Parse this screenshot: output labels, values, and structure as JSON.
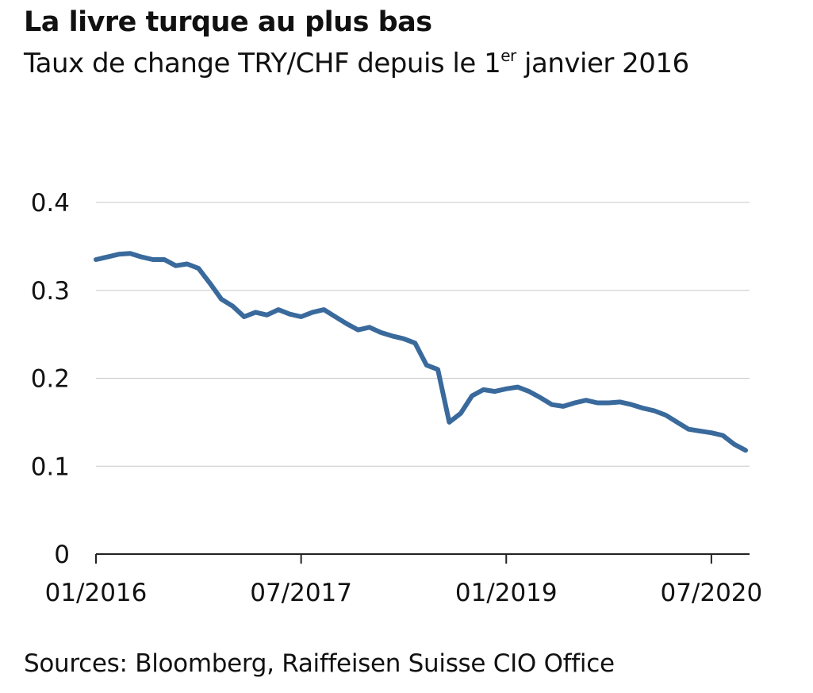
{
  "header": {
    "title": "La livre turque au plus bas",
    "subtitle_main": "Taux de change TRY/CHF depuis le 1",
    "subtitle_sup": "er",
    "subtitle_end": " janvier 2016"
  },
  "footer": {
    "source": "Sources: Bloomberg, Raiffeisen Suisse CIO Office"
  },
  "chart_data": {
    "type": "line",
    "title": "La livre turque au plus bas",
    "subtitle": "Taux de change TRY/CHF depuis le 1er janvier 2016",
    "xlabel": "",
    "ylabel": "",
    "ylim": [
      0,
      0.4
    ],
    "xlim": [
      "2016-01",
      "2020-10"
    ],
    "grid": true,
    "legend": "none",
    "line_color": "#3a6a9c",
    "y_ticks": [
      "0",
      "0.1",
      "0.2",
      "0.3",
      "0.4"
    ],
    "x_ticks": [
      {
        "label": "01/2016",
        "date": "2016-01"
      },
      {
        "label": "07/2017",
        "date": "2017-07"
      },
      {
        "label": "01/2019",
        "date": "2019-01"
      },
      {
        "label": "07/2020",
        "date": "2020-07"
      }
    ],
    "series": [
      {
        "x": [
          "2016-01",
          "2016-02",
          "2016-03",
          "2016-04",
          "2016-05",
          "2016-06",
          "2016-07",
          "2016-08",
          "2016-09",
          "2016-10",
          "2016-11",
          "2016-12",
          "2017-01",
          "2017-02",
          "2017-03",
          "2017-04",
          "2017-05",
          "2017-06",
          "2017-07",
          "2017-08",
          "2017-09",
          "2017-10",
          "2017-11",
          "2017-12",
          "2018-01",
          "2018-02",
          "2018-03",
          "2018-04",
          "2018-05",
          "2018-06",
          "2018-07",
          "2018-08",
          "2018-09",
          "2018-10",
          "2018-11",
          "2018-12",
          "2019-01",
          "2019-02",
          "2019-03",
          "2019-04",
          "2019-05",
          "2019-06",
          "2019-07",
          "2019-08",
          "2019-09",
          "2019-10",
          "2019-11",
          "2019-12",
          "2020-01",
          "2020-02",
          "2020-03",
          "2020-04",
          "2020-05",
          "2020-06",
          "2020-07",
          "2020-08",
          "2020-09",
          "2020-10"
        ],
        "y": [
          0.335,
          0.338,
          0.341,
          0.342,
          0.338,
          0.335,
          0.335,
          0.328,
          0.33,
          0.325,
          0.308,
          0.29,
          0.282,
          0.27,
          0.275,
          0.272,
          0.278,
          0.273,
          0.27,
          0.275,
          0.278,
          0.27,
          0.262,
          0.255,
          0.258,
          0.252,
          0.248,
          0.245,
          0.24,
          0.215,
          0.21,
          0.15,
          0.16,
          0.18,
          0.187,
          0.185,
          0.188,
          0.19,
          0.185,
          0.178,
          0.17,
          0.168,
          0.172,
          0.175,
          0.172,
          0.172,
          0.173,
          0.17,
          0.166,
          0.163,
          0.158,
          0.15,
          0.142,
          0.14,
          0.138,
          0.135,
          0.125,
          0.118
        ]
      }
    ]
  }
}
